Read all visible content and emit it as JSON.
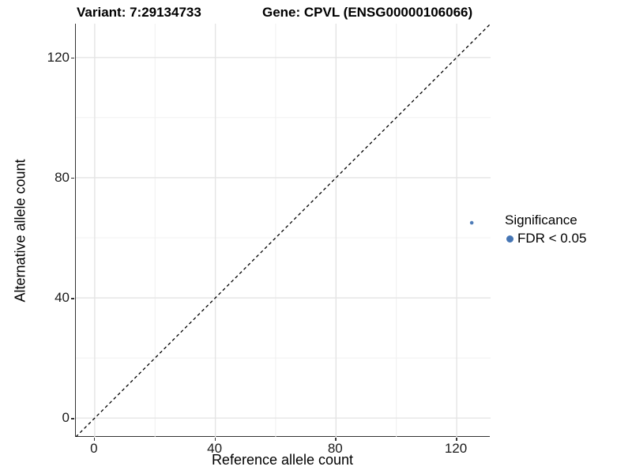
{
  "chart_data": {
    "type": "scatter",
    "titles": {
      "variant": "Variant: 7:29134733",
      "gene": "Gene: CPVL (ENSG00000106066)"
    },
    "xlabel": "Reference allele count",
    "ylabel": "Alternative allele count",
    "xlim": [
      -6.25,
      131.25
    ],
    "ylim": [
      -6.25,
      131.25
    ],
    "x_ticks": [
      0,
      40,
      80,
      120
    ],
    "y_ticks": [
      0,
      40,
      80,
      120
    ],
    "x_minor_ticks": [
      20,
      60,
      100
    ],
    "y_minor_ticks": [
      20,
      60,
      100
    ],
    "grid": "major+minor",
    "identity_line": {
      "style": "dashed",
      "slope": 1,
      "intercept": 0
    },
    "series": [
      {
        "name": "FDR < 0.05",
        "color": "#4575b4",
        "point_radius": 2.3,
        "points": [
          {
            "x": 125,
            "y": 65
          }
        ]
      }
    ],
    "legend": {
      "title": "Significance",
      "position": "right",
      "items": [
        {
          "label": "FDR < 0.05",
          "color": "#4575b4"
        }
      ]
    },
    "colors": {
      "grid_major": "#e4e4e4",
      "grid_minor": "#f0f0f0",
      "axis_line": "#333333",
      "dashed_line": "#000000",
      "background": "#ffffff"
    }
  }
}
